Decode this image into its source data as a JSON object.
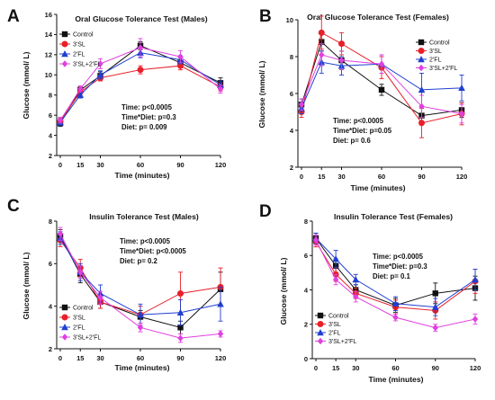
{
  "chart_data": [
    {
      "panel_label": "A",
      "type": "line",
      "title": "Oral Glucose Tolerance Test (Males)",
      "xlabel": "Time (minutes)",
      "ylabel": "Glucose (mmol/ L)",
      "x": [
        0,
        15,
        30,
        60,
        90,
        120
      ],
      "xlim": [
        0,
        120
      ],
      "ylim": [
        2,
        16
      ],
      "yticks": [
        2,
        4,
        6,
        8,
        10,
        12,
        14,
        16
      ],
      "grid": false,
      "legend_position": "top-left",
      "stats": [
        "Time: p<0.0005",
        "Time*Diet: p=0.3",
        "Diet: p= 0.009"
      ],
      "series": [
        {
          "name": "Control",
          "color": "#111111",
          "marker": "square",
          "values": [
            5.2,
            8.5,
            9.9,
            12.9,
            11.2,
            9.2
          ],
          "errors": [
            0.3,
            0.3,
            0.4,
            0.4,
            0.5,
            0.5
          ]
        },
        {
          "name": "3'SL",
          "color": "#e8202a",
          "marker": "circle",
          "values": [
            5.4,
            8.3,
            9.7,
            10.5,
            10.9,
            8.8
          ],
          "errors": [
            0.3,
            0.4,
            0.3,
            0.4,
            0.4,
            0.4
          ]
        },
        {
          "name": "2'FL",
          "color": "#1f3fd0",
          "marker": "triangle",
          "values": [
            5.3,
            8.0,
            10.0,
            12.2,
            11.5,
            9.0
          ],
          "errors": [
            0.3,
            0.3,
            0.4,
            0.5,
            0.4,
            0.4
          ]
        },
        {
          "name": "3'SL+2'FL",
          "color": "#e040e0",
          "marker": "diamond",
          "values": [
            5.5,
            8.6,
            11.1,
            12.7,
            11.8,
            8.6
          ],
          "errors": [
            0.3,
            0.3,
            0.5,
            0.9,
            0.6,
            0.4
          ]
        }
      ]
    },
    {
      "panel_label": "B",
      "type": "line",
      "title": "Oral Glucose Tolerance Test (Females)",
      "xlabel": "Time (minutes)",
      "ylabel": "Glucose (mmol/ L)",
      "x": [
        0,
        15,
        30,
        60,
        90,
        120
      ],
      "xlim": [
        0,
        120
      ],
      "ylim": [
        2,
        10
      ],
      "yticks": [
        2,
        4,
        6,
        8,
        10
      ],
      "grid": false,
      "legend_position": "top-right",
      "stats": [
        "Time: p<0.0005",
        "Time*Diet: p=0.05",
        "Diet: p= 0.6"
      ],
      "series": [
        {
          "name": "Control",
          "color": "#111111",
          "marker": "square",
          "values": [
            5.4,
            8.8,
            7.8,
            6.2,
            4.8,
            5.1
          ],
          "errors": [
            0.3,
            0.5,
            0.5,
            0.3,
            0.4,
            0.4
          ]
        },
        {
          "name": "3'SL",
          "color": "#e8202a",
          "marker": "circle",
          "values": [
            5.0,
            9.3,
            8.7,
            7.4,
            4.4,
            4.9
          ],
          "errors": [
            0.3,
            0.9,
            0.6,
            0.6,
            0.8,
            0.6
          ]
        },
        {
          "name": "2'FL",
          "color": "#1f3fd0",
          "marker": "triangle",
          "values": [
            5.2,
            7.7,
            7.5,
            7.6,
            6.2,
            6.3
          ],
          "errors": [
            0.3,
            0.6,
            0.5,
            0.5,
            0.9,
            0.7
          ]
        },
        {
          "name": "3'SL+2'FL",
          "color": "#e040e0",
          "marker": "diamond",
          "values": [
            5.4,
            8.1,
            7.8,
            7.6,
            5.3,
            4.9
          ],
          "errors": [
            0.3,
            0.6,
            0.5,
            0.5,
            0.6,
            0.5
          ]
        }
      ]
    },
    {
      "panel_label": "C",
      "type": "line",
      "title": "Insulin Tolerance Test (Males)",
      "xlabel": "Time (minutes)",
      "ylabel": "Glucose (mmol/ L)",
      "x": [
        0,
        15,
        30,
        60,
        90,
        120
      ],
      "xlim": [
        0,
        120
      ],
      "ylim": [
        2,
        8
      ],
      "yticks": [
        2,
        4,
        6,
        8
      ],
      "grid": false,
      "legend_position": "bottom-left",
      "stats": [
        "Time: p<0.0005",
        "Time*Diet: p<0.0005",
        "Diet: p= 0.2"
      ],
      "series": [
        {
          "name": "Control",
          "color": "#111111",
          "marker": "square",
          "values": [
            7.3,
            5.5,
            4.2,
            3.5,
            3.0,
            4.8
          ],
          "errors": [
            0.3,
            0.4,
            0.3,
            0.3,
            0.3,
            0.8
          ]
        },
        {
          "name": "3'SL",
          "color": "#e8202a",
          "marker": "circle",
          "values": [
            7.1,
            5.8,
            4.2,
            3.6,
            4.6,
            4.9
          ],
          "errors": [
            0.3,
            0.4,
            0.3,
            0.4,
            1.0,
            0.9
          ]
        },
        {
          "name": "2'FL",
          "color": "#1f3fd0",
          "marker": "triangle",
          "values": [
            7.2,
            5.6,
            4.6,
            3.6,
            3.7,
            4.1
          ],
          "errors": [
            0.3,
            0.4,
            0.4,
            0.5,
            0.6,
            0.8
          ]
        },
        {
          "name": "3'SL+2'FL",
          "color": "#e040e0",
          "marker": "diamond",
          "values": [
            7.4,
            5.6,
            4.4,
            3.0,
            2.5,
            2.7
          ],
          "errors": [
            0.3,
            0.3,
            0.3,
            0.2,
            0.2,
            0.15
          ]
        }
      ]
    },
    {
      "panel_label": "D",
      "type": "line",
      "title": "Insulin Tolerance Test (Females)",
      "xlabel": "Time (minutes)",
      "ylabel": "Glucose (mmol/ L)",
      "x": [
        0,
        15,
        30,
        60,
        90,
        120
      ],
      "xlim": [
        0,
        120
      ],
      "ylim": [
        0,
        8
      ],
      "yticks": [
        0,
        2,
        4,
        6,
        8
      ],
      "grid": false,
      "legend_position": "bottom-left",
      "stats": [
        "Time: p<0.0005",
        "Time*Diet: p=0.3",
        "Diet: p= 0.1"
      ],
      "series": [
        {
          "name": "Control",
          "color": "#111111",
          "marker": "square",
          "values": [
            7.0,
            5.4,
            4.0,
            3.1,
            3.8,
            4.1
          ],
          "errors": [
            0.3,
            0.4,
            0.3,
            0.4,
            0.6,
            0.7
          ]
        },
        {
          "name": "3'SL",
          "color": "#e8202a",
          "marker": "circle",
          "values": [
            6.8,
            4.9,
            3.8,
            3.0,
            2.8,
            4.5
          ],
          "errors": [
            0.3,
            0.4,
            0.3,
            0.4,
            0.5,
            0.7
          ]
        },
        {
          "name": "2'FL",
          "color": "#1f3fd0",
          "marker": "triangle",
          "values": [
            7.0,
            5.8,
            4.6,
            3.2,
            3.0,
            4.6
          ],
          "errors": [
            0.3,
            0.5,
            0.3,
            0.4,
            0.5,
            0.6
          ]
        },
        {
          "name": "3'SL+2'FL",
          "color": "#e040e0",
          "marker": "diamond",
          "values": [
            6.9,
            4.6,
            3.6,
            2.4,
            1.8,
            2.3
          ],
          "errors": [
            0.3,
            0.3,
            0.3,
            0.2,
            0.2,
            0.3
          ]
        }
      ]
    }
  ]
}
